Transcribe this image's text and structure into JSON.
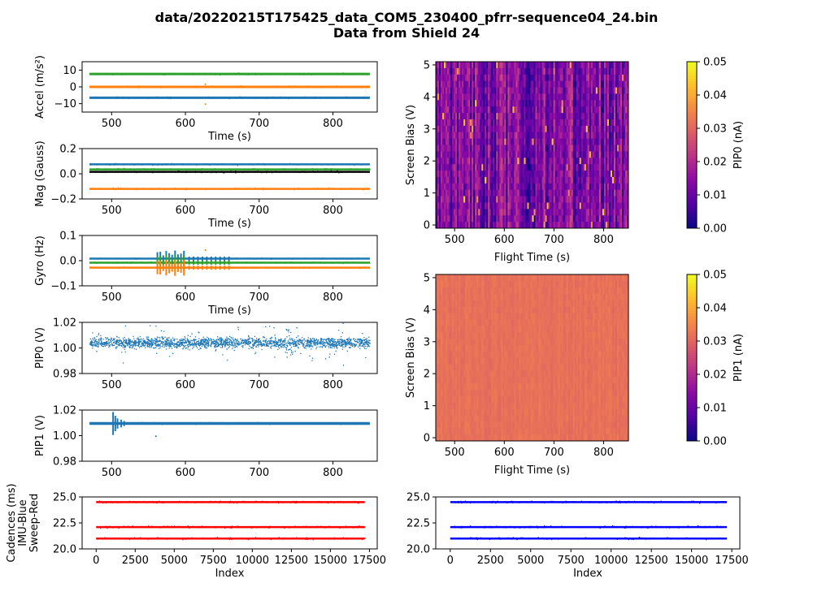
{
  "figure": {
    "title_line1": "data/20220215T175425_data_COM5_230400_pfrr-sequence04_24.bin",
    "title_line2": "Data from Shield 24"
  },
  "colors": {
    "series1": "#1f77b4",
    "series2": "#ff7f0e",
    "series3": "#2ca02c",
    "mag_black": "#000000",
    "cadence_red": "#ff0000",
    "cadence_blue": "#0000ff"
  },
  "chart_data": [
    {
      "id": "accel",
      "type": "line",
      "ylabel": "Accel (m/s²)",
      "xlabel": "Time (s)",
      "xlim": [
        460,
        860
      ],
      "ylim": [
        -15,
        15
      ],
      "xticks": [
        500,
        600,
        700,
        800
      ],
      "yticks": [
        -10,
        0,
        10
      ],
      "ytick_labels": [
        "−10",
        "0",
        "10"
      ],
      "series": [
        {
          "color": "#1f77b4",
          "x_range": [
            470,
            850
          ],
          "value": -6.5
        },
        {
          "color": "#ff7f0e",
          "x_range": [
            470,
            850
          ],
          "value": 0
        },
        {
          "color": "#2ca02c",
          "x_range": [
            470,
            850
          ],
          "value": 7.7
        }
      ]
    },
    {
      "id": "mag",
      "type": "line",
      "ylabel": "Mag (Gauss)",
      "xlabel": "Time (s)",
      "xlim": [
        460,
        860
      ],
      "ylim": [
        -0.2,
        0.2
      ],
      "xticks": [
        500,
        600,
        700,
        800
      ],
      "yticks": [
        -0.2,
        0.0,
        0.2
      ],
      "ytick_labels": [
        "−0.2",
        "0.0",
        "0.2"
      ],
      "series": [
        {
          "color": "#1f77b4",
          "x_range": [
            470,
            850
          ],
          "value": 0.075
        },
        {
          "color": "#2ca02c",
          "x_range": [
            470,
            850
          ],
          "value": 0.035
        },
        {
          "color": "#000000",
          "x_range": [
            470,
            850
          ],
          "value": 0.015
        },
        {
          "color": "#ff7f0e",
          "x_range": [
            470,
            850
          ],
          "value": -0.12
        }
      ]
    },
    {
      "id": "gyro",
      "type": "line",
      "ylabel": "Gyro (Hz)",
      "xlabel": "Time (s)",
      "xlim": [
        460,
        860
      ],
      "ylim": [
        -0.1,
        0.1
      ],
      "xticks": [
        500,
        600,
        700,
        800
      ],
      "yticks": [
        -0.1,
        0.0,
        0.1
      ],
      "ytick_labels": [
        "−0.1",
        "0.0",
        "0.1"
      ],
      "series": [
        {
          "color": "#1f77b4",
          "x_range": [
            470,
            850
          ],
          "value": 0.008
        },
        {
          "color": "#2ca02c",
          "x_range": [
            470,
            850
          ],
          "value": -0.008
        },
        {
          "color": "#ff7f0e",
          "x_range": [
            470,
            850
          ],
          "value": -0.028
        }
      ]
    },
    {
      "id": "pip0",
      "type": "scatter",
      "ylabel": "PIP0 (V)",
      "xlim": [
        460,
        860
      ],
      "ylim": [
        0.98,
        1.02
      ],
      "xticks": [
        500,
        600,
        700,
        800
      ],
      "yticks": [
        0.98,
        1.0,
        1.02
      ],
      "ytick_labels": [
        "0.98",
        "1.00",
        "1.02"
      ],
      "series": [
        {
          "color": "#1f77b4",
          "x_range": [
            470,
            850
          ],
          "center": 1.004,
          "spread": 0.006
        }
      ]
    },
    {
      "id": "pip1",
      "type": "scatter",
      "ylabel": "PIP1 (V)",
      "xlim": [
        460,
        860
      ],
      "ylim": [
        0.98,
        1.02
      ],
      "xticks": [
        500,
        600,
        700,
        800
      ],
      "yticks": [
        0.98,
        1.0,
        1.02
      ],
      "ytick_labels": [
        "0.98",
        "1.00",
        "1.02"
      ],
      "series": [
        {
          "color": "#1f77b4",
          "x_range": [
            470,
            850
          ],
          "value": 1.0095
        }
      ]
    },
    {
      "id": "cadence_left",
      "type": "scatter",
      "ylabel_lines": [
        "Cadences (ms)",
        "IMU-Blue",
        "Sweep-Red"
      ],
      "xlabel": "Index",
      "xlim": [
        -900,
        18000
      ],
      "ylim": [
        20,
        25
      ],
      "xticks": [
        0,
        2500,
        5000,
        7500,
        10000,
        12500,
        15000,
        17500
      ],
      "yticks": [
        20,
        22.5,
        25
      ],
      "ytick_labels": [
        "20.0",
        "22.5",
        "25.0"
      ],
      "series": [
        {
          "color": "#ff0000",
          "x_range": [
            0,
            17200
          ],
          "value": 24.5
        },
        {
          "color": "#ff0000",
          "x_range": [
            0,
            17200
          ],
          "value": 22.1
        },
        {
          "color": "#ff0000",
          "x_range": [
            0,
            17200
          ],
          "value": 21.0
        }
      ]
    },
    {
      "id": "cadence_right",
      "type": "scatter",
      "xlabel": "Index",
      "xlim": [
        -900,
        18000
      ],
      "ylim": [
        20,
        25
      ],
      "xticks": [
        0,
        2500,
        5000,
        7500,
        10000,
        12500,
        15000,
        17500
      ],
      "yticks": [
        20,
        22.5,
        25
      ],
      "ytick_labels": [
        "20.0",
        "22.5",
        "25.0"
      ],
      "series": [
        {
          "color": "#0000ff",
          "x_range": [
            0,
            17200
          ],
          "value": 24.5
        },
        {
          "color": "#0000ff",
          "x_range": [
            0,
            17200
          ],
          "value": 22.1
        },
        {
          "color": "#0000ff",
          "x_range": [
            0,
            17200
          ],
          "value": 21.0
        }
      ]
    },
    {
      "id": "heat_pip0",
      "type": "heatmap",
      "xlabel": "Flight Time (s)",
      "ylabel": "Screen Bias (V)",
      "xlim": [
        462,
        850
      ],
      "ylim": [
        -0.1,
        5.1
      ],
      "xticks": [
        500,
        600,
        700,
        800
      ],
      "yticks": [
        0,
        1,
        2,
        3,
        4,
        5
      ],
      "colormap": "plasma",
      "typical_value": 0.013,
      "colorbar": {
        "label": "PIP0 (nA)",
        "range": [
          0,
          0.05
        ],
        "ticks": [
          "0.00",
          "0.01",
          "0.02",
          "0.03",
          "0.04",
          "0.05"
        ]
      }
    },
    {
      "id": "heat_pip1",
      "type": "heatmap",
      "xlabel": "Flight Time (s)",
      "ylabel": "Screen Bias (V)",
      "xlim": [
        462,
        850
      ],
      "ylim": [
        -0.1,
        5.1
      ],
      "xticks": [
        500,
        600,
        700,
        800
      ],
      "yticks": [
        0,
        1,
        2,
        3,
        4,
        5
      ],
      "colormap": "plasma",
      "typical_value": 0.032,
      "colorbar": {
        "label": "PIP1 (nA)",
        "range": [
          0,
          0.05
        ],
        "ticks": [
          "0.00",
          "0.01",
          "0.02",
          "0.03",
          "0.04",
          "0.05"
        ]
      }
    }
  ]
}
